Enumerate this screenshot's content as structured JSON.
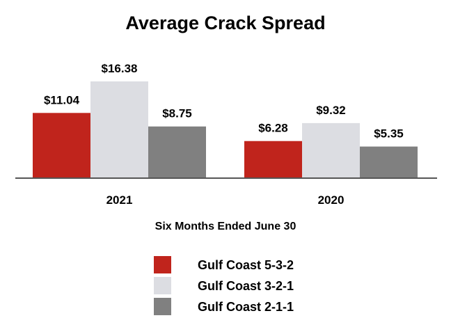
{
  "chart_data": {
    "type": "bar",
    "title": "Average Crack Spread",
    "xlabel": "Six Months Ended June 30",
    "ylabel": "",
    "categories": [
      "2021",
      "2020"
    ],
    "series": [
      {
        "name": "Gulf Coast 5-3-2",
        "color": "#c0241c",
        "values": [
          11.04,
          6.28
        ],
        "labels": [
          "$11.04",
          "$6.28"
        ]
      },
      {
        "name": "Gulf Coast 3-2-1",
        "color": "#dcdde2",
        "values": [
          16.38,
          9.32
        ],
        "labels": [
          "$16.38",
          "$9.32"
        ]
      },
      {
        "name": "Gulf Coast 2-1-1",
        "color": "#808080",
        "values": [
          8.75,
          5.35
        ],
        "labels": [
          "$8.75",
          "$5.35"
        ]
      }
    ],
    "ylim": [
      0,
      16.38
    ],
    "grid": false,
    "legend_position": "bottom"
  }
}
